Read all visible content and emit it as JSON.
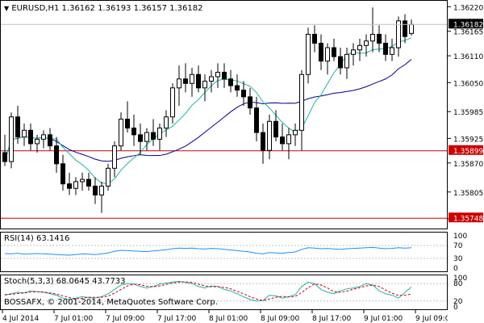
{
  "main": {
    "header": "EURUSD,H1  1.36162 1.36193 1.36157 1.36182",
    "price_labels": [
      "1.36220",
      "1.36165",
      "1.36110",
      "1.36050",
      "1.35985",
      "1.35925",
      "1.35870",
      "1.35805",
      "1.35745"
    ],
    "current_price": "1.36182",
    "line_high": "1.35899",
    "line_low": "1.35748",
    "colors": {
      "ma_fast": "#20b2aa",
      "ma_slow": "#00008b",
      "hline": "#cc0000",
      "candle": "#000000"
    }
  },
  "rsi": {
    "label": "RSI(14) 63.1416",
    "levels": [
      "100",
      "70",
      "30",
      "0"
    ],
    "color": "#1e90ff"
  },
  "stoch": {
    "label": "Stoch(5,3,3) 68.0645 43.7733",
    "levels": [
      "100",
      "80",
      "20",
      "0"
    ],
    "colors": {
      "main": "#20b2aa",
      "signal": "#cc0000"
    }
  },
  "copyright": "BOSSAFX, © 2001-2014, MetaQuotes Software Corp.",
  "time_labels": [
    "4 Jul 2014",
    "7 Jul 01:00",
    "7 Jul 09:00",
    "7 Jul 17:00",
    "8 Jul 01:00",
    "8 Jul 09:00",
    "8 Jul 17:00",
    "9 Jul 01:00",
    "9 Jul 09:00"
  ],
  "candles": [
    [
      1.35895,
      1.35935,
      1.35865,
      1.35875
    ],
    [
      1.35875,
      1.35985,
      1.3586,
      1.35975
    ],
    [
      1.35975,
      1.36,
      1.35915,
      1.3593
    ],
    [
      1.3593,
      1.3596,
      1.3591,
      1.35945
    ],
    [
      1.35945,
      1.3596,
      1.359,
      1.35915
    ],
    [
      1.35915,
      1.35935,
      1.35895,
      1.35925
    ],
    [
      1.35925,
      1.35945,
      1.35905,
      1.35935
    ],
    [
      1.35935,
      1.3595,
      1.359,
      1.3591
    ],
    [
      1.3591,
      1.3593,
      1.3585,
      1.3587
    ],
    [
      1.3587,
      1.3589,
      1.3581,
      1.35825
    ],
    [
      1.35825,
      1.3585,
      1.358,
      1.35815
    ],
    [
      1.35815,
      1.3584,
      1.358,
      1.3583
    ],
    [
      1.3583,
      1.3585,
      1.3581,
      1.35835
    ],
    [
      1.35835,
      1.3585,
      1.3581,
      1.3582
    ],
    [
      1.3582,
      1.3584,
      1.3578,
      1.358
    ],
    [
      1.358,
      1.3583,
      1.3576,
      1.3582
    ],
    [
      1.3582,
      1.3587,
      1.3581,
      1.3586
    ],
    [
      1.3586,
      1.3592,
      1.3584,
      1.3591
    ],
    [
      1.3591,
      1.35985,
      1.359,
      1.3597
    ],
    [
      1.3597,
      1.3601,
      1.3594,
      1.3595
    ],
    [
      1.3595,
      1.3598,
      1.3591,
      1.35935
    ],
    [
      1.35935,
      1.3596,
      1.3589,
      1.3592
    ],
    [
      1.3592,
      1.3595,
      1.359,
      1.3594
    ],
    [
      1.3594,
      1.3597,
      1.3591,
      1.35925
    ],
    [
      1.35925,
      1.3596,
      1.359,
      1.3595
    ],
    [
      1.3595,
      1.3599,
      1.3593,
      1.35975
    ],
    [
      1.35975,
      1.3605,
      1.3596,
      1.3604
    ],
    [
      1.3604,
      1.3609,
      1.36,
      1.3606
    ],
    [
      1.3606,
      1.36095,
      1.3603,
      1.3605
    ],
    [
      1.3605,
      1.36085,
      1.3602,
      1.3607
    ],
    [
      1.3607,
      1.3609,
      1.3603,
      1.3604
    ],
    [
      1.3604,
      1.3607,
      1.3601,
      1.36055
    ],
    [
      1.36055,
      1.3608,
      1.3603,
      1.36065
    ],
    [
      1.36065,
      1.36095,
      1.3604,
      1.36075
    ],
    [
      1.36075,
      1.36095,
      1.3604,
      1.3606
    ],
    [
      1.3606,
      1.3608,
      1.3603,
      1.36045
    ],
    [
      1.36045,
      1.3607,
      1.3602,
      1.36035
    ],
    [
      1.36035,
      1.36055,
      1.36,
      1.3602
    ],
    [
      1.3602,
      1.3604,
      1.3598,
      1.35995
    ],
    [
      1.35995,
      1.3602,
      1.3592,
      1.3594
    ],
    [
      1.3594,
      1.3596,
      1.3587,
      1.359
    ],
    [
      1.359,
      1.3598,
      1.3588,
      1.35965
    ],
    [
      1.35965,
      1.3599,
      1.3592,
      1.3593
    ],
    [
      1.3593,
      1.3596,
      1.359,
      1.35915
    ],
    [
      1.35915,
      1.3595,
      1.3588,
      1.35935
    ],
    [
      1.35935,
      1.3596,
      1.3591,
      1.35945
    ],
    [
      1.35945,
      1.3608,
      1.359,
      1.3607
    ],
    [
      1.3607,
      1.36175,
      1.3605,
      1.3616
    ],
    [
      1.3616,
      1.3618,
      1.3612,
      1.3614
    ],
    [
      1.3614,
      1.3616,
      1.3608,
      1.361
    ],
    [
      1.361,
      1.3614,
      1.3607,
      1.3613
    ],
    [
      1.3613,
      1.3615,
      1.361,
      1.3611
    ],
    [
      1.3611,
      1.3613,
      1.3607,
      1.36085
    ],
    [
      1.36085,
      1.3613,
      1.3606,
      1.36115
    ],
    [
      1.36115,
      1.3614,
      1.3609,
      1.36125
    ],
    [
      1.36125,
      1.3615,
      1.361,
      1.36135
    ],
    [
      1.36135,
      1.3616,
      1.3611,
      1.36145
    ],
    [
      1.36145,
      1.3622,
      1.3612,
      1.3616
    ],
    [
      1.3616,
      1.3618,
      1.3612,
      1.3614
    ],
    [
      1.3614,
      1.3616,
      1.361,
      1.36115
    ],
    [
      1.36115,
      1.3615,
      1.361,
      1.3613
    ],
    [
      1.3613,
      1.362,
      1.3611,
      1.3619
    ],
    [
      1.3619,
      1.36205,
      1.3614,
      1.36155
    ],
    [
      1.36162,
      1.36193,
      1.36157,
      1.36182
    ]
  ],
  "rsi_values": [
    45,
    44,
    46,
    43,
    44,
    45,
    44,
    43,
    42,
    41,
    40,
    42,
    44,
    43,
    42,
    44,
    47,
    52,
    55,
    54,
    53,
    52,
    51,
    53,
    55,
    57,
    60,
    62,
    61,
    62,
    60,
    59,
    61,
    60,
    58,
    56,
    54,
    52,
    50,
    46,
    44,
    48,
    47,
    46,
    48,
    50,
    58,
    63,
    62,
    60,
    61,
    59,
    58,
    60,
    61,
    62,
    63,
    64,
    62,
    60,
    61,
    63,
    62,
    63
  ],
  "stoch_main": [
    40,
    45,
    50,
    48,
    55,
    52,
    50,
    45,
    40,
    30,
    25,
    30,
    35,
    32,
    30,
    35,
    45,
    60,
    75,
    80,
    78,
    70,
    65,
    70,
    78,
    82,
    85,
    88,
    84,
    80,
    70,
    65,
    72,
    70,
    60,
    55,
    45,
    35,
    25,
    20,
    22,
    40,
    38,
    30,
    35,
    42,
    70,
    85,
    80,
    60,
    50,
    45,
    55,
    62,
    65,
    70,
    80,
    75,
    55,
    45,
    40,
    30,
    50,
    68
  ],
  "stoch_signal": [
    42,
    43,
    46,
    48,
    51,
    52,
    51,
    48,
    44,
    38,
    32,
    28,
    30,
    33,
    33,
    33,
    37,
    47,
    60,
    72,
    78,
    76,
    71,
    69,
    72,
    77,
    82,
    85,
    86,
    84,
    78,
    72,
    69,
    69,
    67,
    62,
    53,
    45,
    35,
    27,
    22,
    27,
    33,
    36,
    34,
    36,
    49,
    66,
    79,
    75,
    65,
    52,
    50,
    54,
    61,
    66,
    72,
    75,
    70,
    58,
    47,
    39,
    40,
    44
  ]
}
